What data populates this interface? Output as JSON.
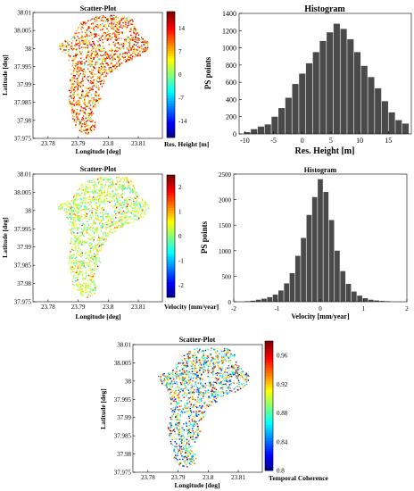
{
  "chart_data": [
    {
      "id": "scatter_height",
      "type": "scatter",
      "title": "Scatter-Plot",
      "xlabel": "Longitude [deg]",
      "ylabel": "Latitude [deg]",
      "xlim": [
        23.775,
        23.818
      ],
      "ylim": [
        37.975,
        38.01
      ],
      "xticks": [
        "23.78",
        "23.79",
        "23.8",
        "23.81"
      ],
      "xtick_values": [
        23.78,
        23.79,
        23.8,
        23.81
      ],
      "yticks": [
        "38.01",
        "38.005",
        "38",
        "37.995",
        "37.99",
        "37.985",
        "37.98",
        "37.975"
      ],
      "ytick_values": [
        38.01,
        38.005,
        38.0,
        37.995,
        37.99,
        37.985,
        37.98,
        37.975
      ],
      "colorbar": {
        "label": "Res. Height [m]",
        "colormap": "jet",
        "range": [
          -19,
          19
        ],
        "ticks": [
          "14",
          "7",
          "0",
          "-7",
          "-14"
        ],
        "tick_values": [
          14,
          7,
          0,
          -7,
          -14
        ]
      },
      "points": "dense cloud of PS points over a hill footprint, colored mostly yellow/orange/red"
    },
    {
      "id": "hist_height",
      "type": "bar",
      "title": "Histogram",
      "xlabel": "Res. Height [m]",
      "ylabel": "PS points",
      "xlim": [
        -11,
        19
      ],
      "ylim": [
        0,
        1400
      ],
      "xticks": [
        "-10",
        "-5",
        "0",
        "5",
        "10",
        "15"
      ],
      "xtick_values": [
        -10,
        -5,
        0,
        5,
        10,
        15
      ],
      "yticks": [
        "1400",
        "1200",
        "1000",
        "800",
        "600",
        "400",
        "200",
        "0"
      ],
      "ytick_values": [
        1400,
        1200,
        1000,
        800,
        600,
        400,
        200,
        0
      ],
      "bin_width": 1.2,
      "bin_centers": [
        -9.6,
        -8.4,
        -7.2,
        -6.0,
        -4.8,
        -3.6,
        -2.4,
        -1.2,
        0.0,
        1.2,
        2.4,
        3.6,
        4.8,
        6.0,
        7.2,
        8.4,
        9.6,
        10.8,
        12.0,
        13.2,
        14.4,
        15.6,
        16.8,
        18.0
      ],
      "values": [
        20,
        55,
        85,
        110,
        200,
        300,
        420,
        580,
        700,
        820,
        950,
        1080,
        1180,
        1280,
        1220,
        1100,
        950,
        790,
        660,
        530,
        380,
        250,
        160,
        120
      ]
    },
    {
      "id": "scatter_velocity",
      "type": "scatter",
      "title": "Scatter-Plot",
      "xlabel": "Longitude [deg]",
      "ylabel": "Latitude [deg]",
      "xlim": [
        23.775,
        23.818
      ],
      "ylim": [
        37.975,
        38.01
      ],
      "xticks": [
        "23.78",
        "23.79",
        "23.8",
        "23.81"
      ],
      "xtick_values": [
        23.78,
        23.79,
        23.8,
        23.81
      ],
      "yticks": [
        "38.01",
        "38.005",
        "38",
        "37.995",
        "37.99",
        "37.985",
        "37.98",
        "37.975"
      ],
      "ytick_values": [
        38.01,
        38.005,
        38.0,
        37.995,
        37.99,
        37.985,
        37.98,
        37.975
      ],
      "colorbar": {
        "label": "Velocity [mm/year]",
        "colormap": "jet",
        "range": [
          -2.5,
          2.5
        ],
        "ticks": [
          "2",
          "1",
          "0",
          "-1",
          "-2"
        ],
        "tick_values": [
          2,
          1,
          0,
          -1,
          -2
        ]
      },
      "points": "dense cloud of PS points, colored mostly green/yellow"
    },
    {
      "id": "hist_velocity",
      "type": "bar",
      "title": "Histogram",
      "xlabel": "Velocity [mm/year]",
      "ylabel": "PS points",
      "xlim": [
        -2,
        2
      ],
      "ylim": [
        0,
        2500
      ],
      "xticks": [
        "-2",
        "-1",
        "0",
        "1",
        "2"
      ],
      "xtick_values": [
        -2,
        -1,
        0,
        1,
        2
      ],
      "yticks": [
        "2500",
        "2000",
        "1500",
        "1000",
        "500",
        "0"
      ],
      "ytick_values": [
        2500,
        2000,
        1500,
        1000,
        500,
        0
      ],
      "bin_width": 0.13,
      "bin_centers": [
        -1.69,
        -1.56,
        -1.43,
        -1.3,
        -1.17,
        -1.04,
        -0.91,
        -0.78,
        -0.65,
        -0.52,
        -0.39,
        -0.26,
        -0.13,
        0.0,
        0.13,
        0.26,
        0.39,
        0.52,
        0.65,
        0.78,
        0.91,
        1.04,
        1.17,
        1.3,
        1.43,
        1.56
      ],
      "values": [
        10,
        20,
        40,
        60,
        90,
        140,
        220,
        360,
        560,
        900,
        1250,
        1700,
        2050,
        2400,
        2150,
        1600,
        1000,
        600,
        350,
        200,
        120,
        70,
        40,
        25,
        15,
        10
      ]
    },
    {
      "id": "scatter_coherence",
      "type": "scatter",
      "title": "Scatter-Plot",
      "xlabel": "Longitude [deg]",
      "ylabel": "Latitude [deg]",
      "xlim": [
        23.775,
        23.818
      ],
      "ylim": [
        37.975,
        38.01
      ],
      "xticks": [
        "23.78",
        "23.79",
        "23.8",
        "23.81"
      ],
      "xtick_values": [
        23.78,
        23.79,
        23.8,
        23.81
      ],
      "yticks": [
        "38.01",
        "38.005",
        "38",
        "37.995",
        "37.99",
        "37.985",
        "37.98",
        "37.975"
      ],
      "ytick_values": [
        38.01,
        38.005,
        38.0,
        37.995,
        37.99,
        37.985,
        37.98,
        37.975
      ],
      "colorbar": {
        "label": "Temporal Coherence",
        "colormap": "jet",
        "range": [
          0.8,
          0.98
        ],
        "ticks": [
          "0.96",
          "0.92",
          "0.88",
          "0.84",
          "0.8"
        ],
        "tick_values": [
          0.96,
          0.92,
          0.88,
          0.84,
          0.8
        ]
      },
      "points": "dense cloud of PS points, mixed blue/green/yellow/red"
    }
  ]
}
